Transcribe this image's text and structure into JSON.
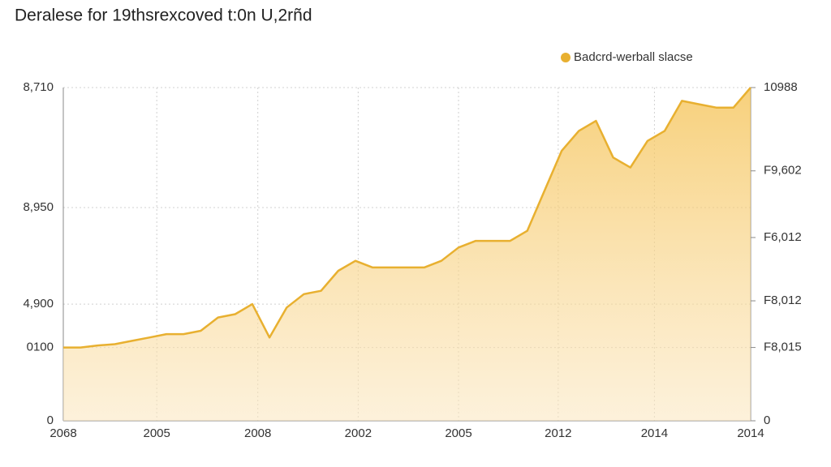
{
  "chart_data": {
    "type": "area",
    "title": "Deralese for 19thsrexcoved t:0n U,2rñd",
    "x": [
      0,
      2.5,
      5,
      7.5,
      10,
      12.5,
      15,
      17.5,
      20,
      22.5,
      25,
      27.5,
      30,
      32.5,
      35,
      37.5,
      40,
      42.5,
      45,
      47.5,
      50,
      52.5,
      55,
      57.5,
      60,
      62.5,
      65,
      67.5,
      70,
      72.5,
      75,
      77.5,
      80,
      82.5,
      85,
      87.5,
      90,
      92.5,
      95,
      97.5,
      100
    ],
    "series": [
      {
        "name": "Badcrd-werball slacse",
        "color": "#e8b030",
        "values": [
          22,
          22,
          22.6,
          23,
          24,
          25,
          26,
          26,
          27,
          31,
          32,
          35,
          25,
          34,
          38,
          39,
          45,
          48,
          46,
          46,
          46,
          46,
          48,
          52,
          54,
          54,
          54,
          57,
          69,
          81,
          87,
          90,
          79,
          76,
          84,
          87,
          96,
          95,
          94,
          94,
          100
        ]
      }
    ],
    "xlim": [
      0,
      100
    ],
    "xticks": [
      {
        "value": 0,
        "label": "2068"
      },
      {
        "value": 13.6,
        "label": "2005"
      },
      {
        "value": 28.3,
        "label": "2008"
      },
      {
        "value": 42.9,
        "label": "2002"
      },
      {
        "value": 57.5,
        "label": "2005"
      },
      {
        "value": 72,
        "label": "2012"
      },
      {
        "value": 86,
        "label": "2014"
      },
      {
        "value": 100,
        "label": "2014"
      }
    ],
    "ylim": [
      0,
      100
    ],
    "yticks": [
      0,
      {
        "value": 22,
        "label": "0100"
      },
      {
        "value": 35,
        "label": "4,900"
      },
      {
        "value": 64,
        "label": "8,950"
      },
      {
        "value": 100,
        "label": "8,710"
      }
    ],
    "y2lim": [
      0,
      100
    ],
    "y2ticks": [
      0,
      {
        "value": 22,
        "label": "F8,015"
      },
      {
        "value": 36,
        "label": "F8,012"
      },
      {
        "value": 55,
        "label": "F6,012"
      },
      {
        "value": 75,
        "label": "F9,602"
      },
      {
        "value": 100,
        "label": "10988"
      }
    ],
    "grid": true
  }
}
